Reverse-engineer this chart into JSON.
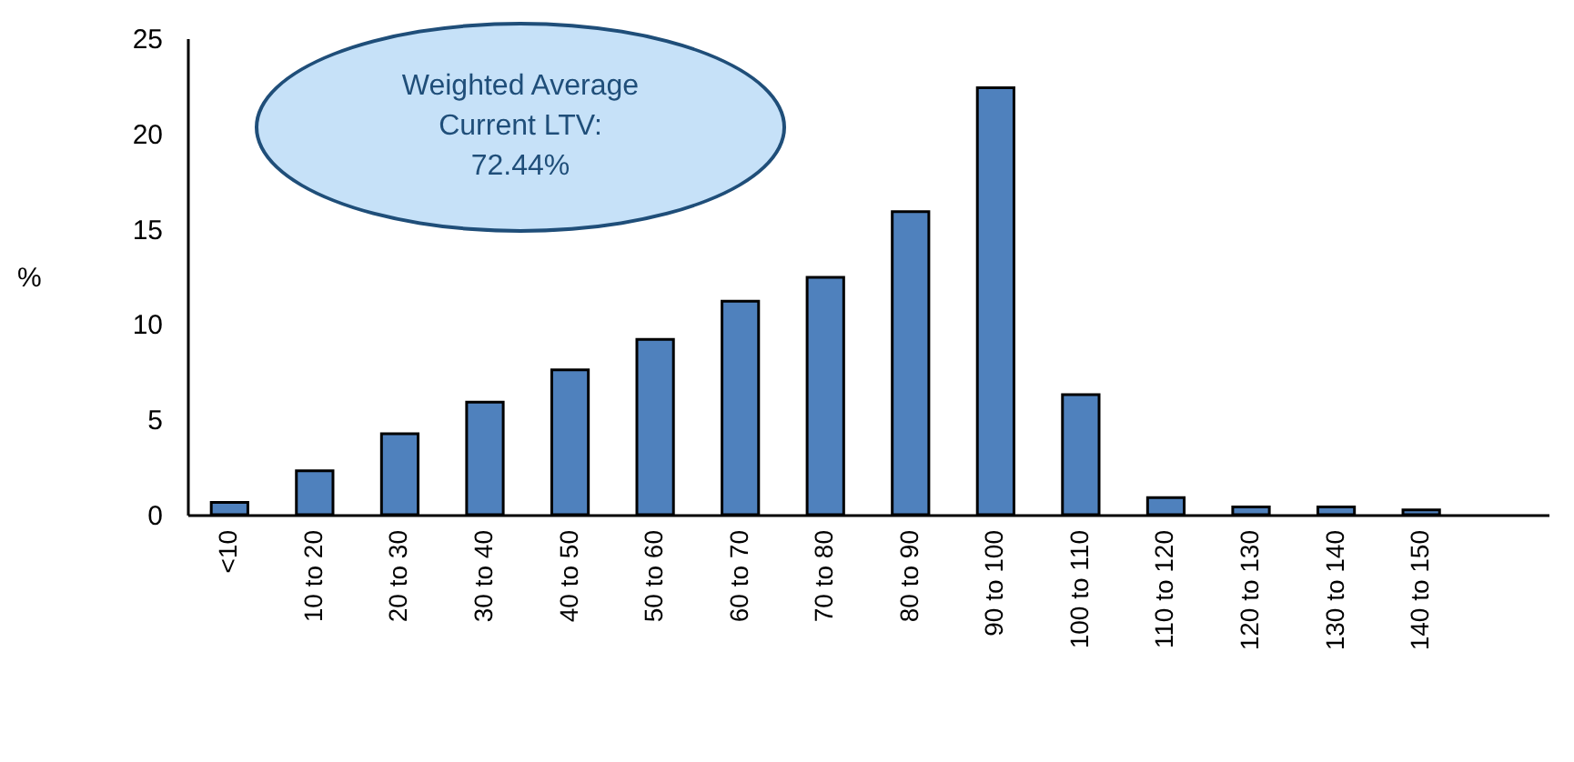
{
  "chart_data": {
    "type": "bar",
    "ylabel": "%",
    "categories": [
      "<10",
      "10 to 20",
      "20 to 30",
      "30 to 40",
      "40 to 50",
      "50 to 60",
      "60 to 70",
      "70 to 80",
      "80 to 90",
      "90 to 100",
      "100 to 110",
      "110 to 120",
      "120 to 130",
      "130 to 140",
      "140 to 150",
      null
    ],
    "values": [
      0.65,
      2.3,
      4.25,
      5.9,
      7.6,
      9.2,
      11.2,
      12.45,
      15.9,
      22.4,
      6.3,
      0.9,
      0.4,
      0.4,
      0.25,
      null
    ],
    "color": "#4f81bd",
    "ylim": [
      0,
      25
    ],
    "yticks": [
      0,
      5,
      10,
      15,
      20,
      25
    ],
    "grid": false,
    "annotations": [
      "Weighted Average Current LTV: 72.44%"
    ]
  }
}
